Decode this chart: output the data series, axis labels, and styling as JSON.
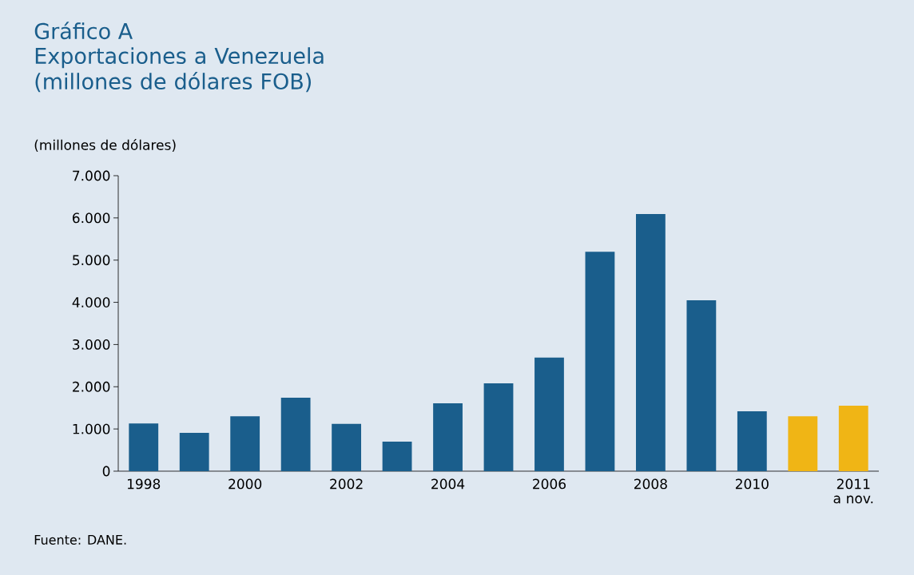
{
  "chart_data": {
    "type": "bar",
    "title": "Gráfico A",
    "subtitle": "Exportaciones a Venezuela (millones de dólares FOB)",
    "ylabel": "(millones de dólares)",
    "categories": [
      "1998",
      null,
      "2000",
      null,
      "2002",
      null,
      "2004",
      null,
      "2006",
      null,
      "2008",
      null,
      "2010",
      null,
      "2011 a nov."
    ],
    "values": [
      1130,
      910,
      1300,
      1740,
      1120,
      700,
      1610,
      2080,
      2690,
      5200,
      6090,
      4050,
      1420,
      1300,
      1550
    ],
    "colors": [
      "#1a5e8c",
      "#1a5e8c",
      "#1a5e8c",
      "#1a5e8c",
      "#1a5e8c",
      "#1a5e8c",
      "#1a5e8c",
      "#1a5e8c",
      "#1a5e8c",
      "#1a5e8c",
      "#1a5e8c",
      "#1a5e8c",
      "#1a5e8c",
      "#f0b515",
      "#f0b515"
    ],
    "ylim": [
      0,
      7000
    ],
    "yticks": [
      0,
      {
        "value": 1000,
        "label": "1.000"
      },
      {
        "value": 2000,
        "label": "2.000"
      },
      {
        "value": 3000,
        "label": "3.000"
      },
      {
        "value": 4000,
        "label": "4.000"
      },
      {
        "value": 5000,
        "label": "5.000"
      },
      {
        "value": 6000,
        "label": "6.000"
      },
      {
        "value": 7000,
        "label": "7.000"
      }
    ],
    "grid": false,
    "annotations": [
      "Fuente: DANE."
    ]
  }
}
